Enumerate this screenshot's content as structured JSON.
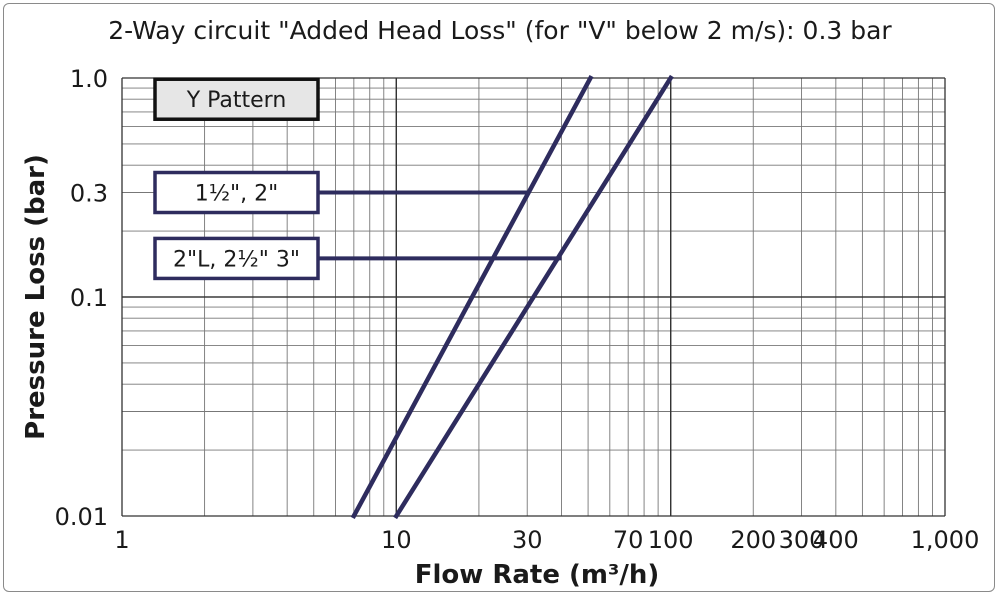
{
  "chart_data": {
    "type": "line",
    "title": "2-Way circuit \"Added Head Loss\" (for \"V\" below 2 m/s): 0.3 bar",
    "xlabel": "Flow Rate (m³/h)",
    "ylabel": "Pressure Loss (bar)",
    "x_scale": "log",
    "y_scale": "log",
    "xlim": [
      1,
      1000
    ],
    "ylim": [
      0.01,
      1.0
    ],
    "x_ticks": [
      {
        "value": 1,
        "label": "1"
      },
      {
        "value": 10,
        "label": "10"
      },
      {
        "value": 30,
        "label": "30"
      },
      {
        "value": 70,
        "label": "70"
      },
      {
        "value": 100,
        "label": "100"
      },
      {
        "value": 200,
        "label": "200"
      },
      {
        "value": 300,
        "label": "300"
      },
      {
        "value": 400,
        "label": "400"
      },
      {
        "value": 1000,
        "label": "1,000"
      }
    ],
    "y_ticks": [
      {
        "value": 1.0,
        "label": "1.0"
      },
      {
        "value": 0.3,
        "label": "0.3"
      },
      {
        "value": 0.1,
        "label": "0.1"
      },
      {
        "value": 0.01,
        "label": "0.01"
      }
    ],
    "grid": true,
    "series": [
      {
        "name": "1½\", 2\"",
        "x": [
          7,
          51
        ],
        "y": [
          0.01,
          1.0
        ],
        "color": "#2e2c5e"
      },
      {
        "name": "2\"L, 2½\" 3\"",
        "x": [
          10,
          100
        ],
        "y": [
          0.01,
          1.0
        ],
        "color": "#2e2c5e"
      }
    ],
    "annotations": [
      {
        "label": "Y Pattern",
        "y": 0.8,
        "style": "header"
      },
      {
        "label": "1½\", 2\"",
        "y": 0.3,
        "x_end": 30
      },
      {
        "label": "2\"L, 2½\" 3\"",
        "y": 0.15,
        "x_end": 40
      }
    ]
  }
}
